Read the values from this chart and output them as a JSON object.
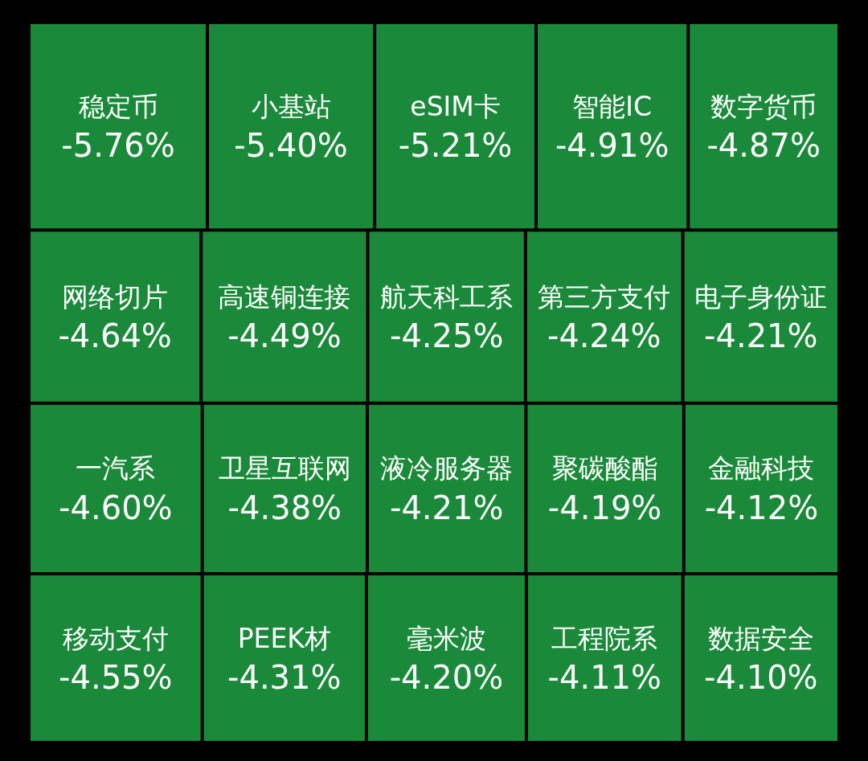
{
  "chart_data": {
    "type": "other",
    "categories": [
      "稳定币",
      "小基站",
      "eSIM卡",
      "智能IC",
      "数字货币",
      "网络切片",
      "高速铜连接",
      "航天科工系",
      "第三方支付",
      "电子身份证",
      "一汽系",
      "卫星互联网",
      "液冷服务器",
      "聚碳酸酯",
      "金融科技",
      "移动支付",
      "PEEK材",
      "毫米波",
      "工程院系",
      "数据安全"
    ],
    "values": [
      -5.76,
      -5.4,
      -5.21,
      -4.91,
      -4.87,
      -4.64,
      -4.49,
      -4.25,
      -4.24,
      -4.21,
      -4.6,
      -4.38,
      -4.21,
      -4.19,
      -4.12,
      -4.55,
      -4.31,
      -4.2,
      -4.11,
      -4.1
    ],
    "value_labels": [
      "-5.76%",
      "-5.40%",
      "-5.21%",
      "-4.91%",
      "-4.87%",
      "-4.64%",
      "-4.49%",
      "-4.25%",
      "-4.24%",
      "-4.21%",
      "-4.60%",
      "-4.38%",
      "-4.21%",
      "-4.19%",
      "-4.12%",
      "-4.55%",
      "-4.31%",
      "-4.20%",
      "-4.11%",
      "-4.10%"
    ],
    "color": "#1a8a3a"
  }
}
